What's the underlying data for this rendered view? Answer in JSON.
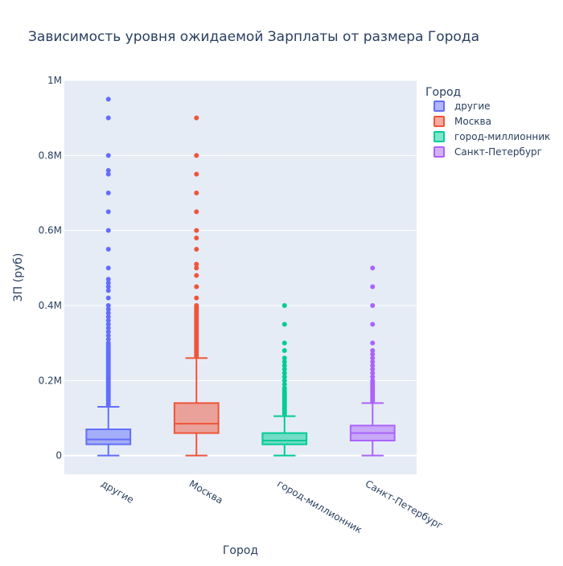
{
  "chart_data": {
    "type": "box",
    "title": "Зависимость уровня ожидаемой Зарплаты от размера Города",
    "xlabel": "Город",
    "ylabel": "ЗП (руб)",
    "ylim": [
      -50000,
      1000000
    ],
    "yticks": [
      {
        "value": 0,
        "label": "0"
      },
      {
        "value": 200000,
        "label": "0.2M"
      },
      {
        "value": 400000,
        "label": "0.4M"
      },
      {
        "value": 600000,
        "label": "0.6M"
      },
      {
        "value": 800000,
        "label": "0.8M"
      },
      {
        "value": 1000000,
        "label": "1M"
      }
    ],
    "grid": true,
    "legend": {
      "title": "Город",
      "position": "top-right"
    },
    "categories": [
      "другие",
      "Москва",
      "город-миллионник",
      "Санкт-Петербург"
    ],
    "series": [
      {
        "name": "другие",
        "color": "#636efa",
        "min": 0,
        "q1": 30000,
        "median": 43000,
        "q3": 70000,
        "upper_fence": 130000,
        "outliers": [
          135000,
          140000,
          145000,
          150000,
          155000,
          160000,
          165000,
          170000,
          175000,
          180000,
          185000,
          190000,
          195000,
          200000,
          205000,
          210000,
          215000,
          220000,
          225000,
          230000,
          235000,
          240000,
          245000,
          250000,
          255000,
          260000,
          265000,
          270000,
          275000,
          280000,
          285000,
          290000,
          295000,
          300000,
          310000,
          320000,
          330000,
          340000,
          350000,
          360000,
          370000,
          380000,
          390000,
          400000,
          420000,
          440000,
          450000,
          460000,
          470000,
          500000,
          550000,
          600000,
          650000,
          700000,
          750000,
          760000,
          800000,
          900000,
          950000
        ]
      },
      {
        "name": "Москва",
        "color": "#ef553b",
        "min": 0,
        "q1": 60000,
        "median": 85000,
        "q3": 140000,
        "upper_fence": 260000,
        "outliers": [
          265000,
          270000,
          275000,
          280000,
          285000,
          290000,
          295000,
          300000,
          305000,
          310000,
          315000,
          320000,
          325000,
          330000,
          335000,
          340000,
          345000,
          350000,
          355000,
          360000,
          365000,
          370000,
          375000,
          380000,
          385000,
          390000,
          395000,
          400000,
          420000,
          450000,
          480000,
          500000,
          510000,
          550000,
          580000,
          600000,
          650000,
          700000,
          750000,
          800000,
          900000
        ]
      },
      {
        "name": "город-миллионник",
        "color": "#00cc96",
        "min": 0,
        "q1": 30000,
        "median": 40000,
        "q3": 60000,
        "upper_fence": 105000,
        "outliers": [
          110000,
          115000,
          120000,
          125000,
          130000,
          135000,
          140000,
          145000,
          150000,
          155000,
          160000,
          165000,
          170000,
          175000,
          180000,
          190000,
          200000,
          210000,
          220000,
          230000,
          240000,
          250000,
          260000,
          280000,
          300000,
          350000,
          400000
        ]
      },
      {
        "name": "Санкт-Петербург",
        "color": "#ab63fa",
        "min": 0,
        "q1": 40000,
        "median": 60000,
        "q3": 80000,
        "upper_fence": 140000,
        "outliers": [
          145000,
          150000,
          155000,
          160000,
          165000,
          170000,
          175000,
          180000,
          185000,
          190000,
          195000,
          200000,
          210000,
          220000,
          230000,
          240000,
          250000,
          260000,
          270000,
          280000,
          300000,
          350000,
          400000,
          450000,
          500000
        ]
      }
    ]
  }
}
